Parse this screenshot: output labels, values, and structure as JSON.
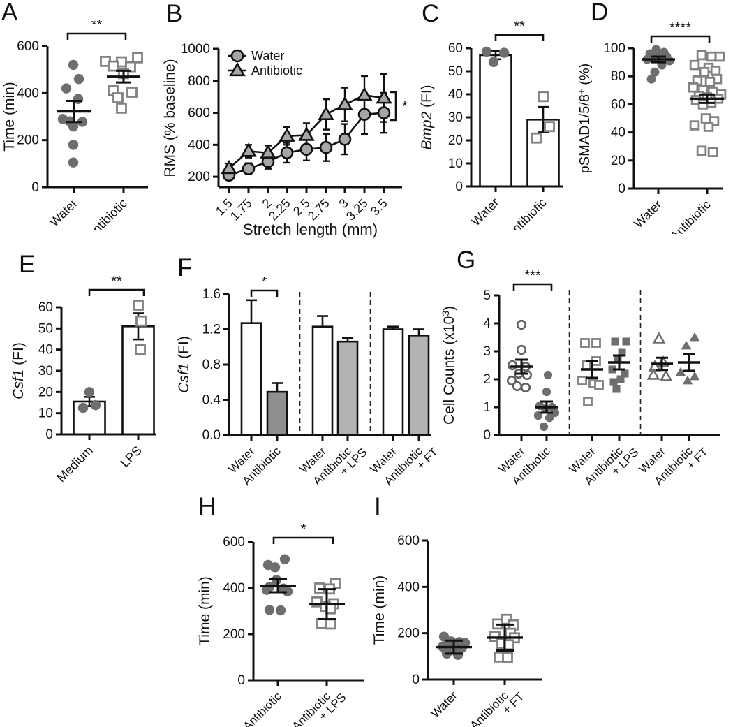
{
  "chart_data": {
    "style": {
      "axis_color": "#111111",
      "marker_gray": "#6e6e6e",
      "open_square_stroke": "#828282",
      "open_circle_stroke": "#5f5f5f",
      "line_marker_fill": "#a6a6a6",
      "bar_white": "#ffffff",
      "bar_dark": "#8f8f8f",
      "bar_light": "#b3b3b3",
      "background": "#ffffff"
    },
    "panel_order": [
      "A",
      "B",
      "C",
      "D",
      "E",
      "F",
      "G",
      "H",
      "I"
    ],
    "panels": {
      "A": {
        "letter": "A",
        "type": "scatter",
        "ylabel": [
          {
            "t": "Time (min)"
          }
        ],
        "ylim": [
          0,
          600
        ],
        "yticks": [
          0,
          200,
          400,
          600
        ],
        "ytick_labels": [
          "0",
          "200",
          "400",
          "600"
        ],
        "groups": [
          {
            "label_lines": [
              "Water"
            ],
            "marker": "circle-filled",
            "values": [
              520,
              460,
              420,
              375,
              290,
              280,
              278,
              258,
              180,
              105
            ],
            "dx": [
              -1,
              7,
              -11,
              6,
              -16,
              -6,
              12,
              -1,
              -1,
              -1
            ],
            "mean": 322,
            "err": 45
          },
          {
            "label_lines": [
              "Antibiotic"
            ],
            "marker": "square-open",
            "values": [
              550,
              535,
              533,
              515,
              512,
              483,
              410,
              404,
              380,
              336
            ],
            "dx": [
              20,
              -26,
              -3,
              -15,
              10,
              0,
              -15,
              12,
              -8,
              -3
            ],
            "mean": 470,
            "err": 25
          }
        ],
        "sig": {
          "label": "**"
        }
      },
      "B": {
        "letter": "B",
        "type": "line",
        "ylabel": [
          {
            "t": "RMS (% baseline)"
          }
        ],
        "xlabel": "Stretch length (mm)",
        "x_categories": [
          "1.5",
          "1.75",
          "2",
          "2.25",
          "2.5",
          "2.75",
          "3",
          "3.25",
          "3.5"
        ],
        "ylim": [
          135,
          1000
        ],
        "yticks": [
          200,
          400,
          600,
          800,
          1000
        ],
        "ytick_labels": [
          "200",
          "400",
          "600",
          "800",
          "1000"
        ],
        "series": [
          {
            "name": "Water",
            "marker": "circle-line",
            "values": [
              210,
              250,
              295,
              350,
              372,
              383,
              435,
              590,
              600
            ],
            "errors": [
              28,
              35,
              45,
              62,
              70,
              85,
              95,
              122,
              125
            ]
          },
          {
            "name": "Antibiotic",
            "marker": "triangle-line",
            "values": [
              253,
              360,
              350,
              455,
              460,
              590,
              652,
              710,
              693
            ],
            "errors": [
              30,
              40,
              45,
              55,
              75,
              95,
              105,
              120,
              150
            ]
          }
        ],
        "legend": {
          "items": [
            "Water",
            "Antibiotic"
          ]
        },
        "sig": {
          "label": "*"
        }
      },
      "C": {
        "letter": "C",
        "type": "bar",
        "ylabel": [
          {
            "t": "Bmp2",
            "italic": true
          },
          {
            "t": " (FI)"
          }
        ],
        "ylim": [
          0,
          60
        ],
        "yticks": [
          0,
          10,
          20,
          30,
          40,
          50,
          60
        ],
        "ytick_labels": [
          "0",
          "10",
          "20",
          "30",
          "40",
          "50",
          "60"
        ],
        "err_mode": "both",
        "groups": [
          {
            "label_lines": [
              "Water"
            ],
            "value": 57,
            "err": 1.8,
            "fill": "white",
            "points": {
              "marker": "circle-filled",
              "values": [
                58.5,
                58,
                54
              ],
              "dx": [
                -13,
                12,
                -3
              ]
            }
          },
          {
            "label_lines": [
              "Antibiotic"
            ],
            "value": 29,
            "err": 5.5,
            "fill": "white",
            "points": {
              "marker": "square-open",
              "values": [
                39,
                26,
                21
              ],
              "dx": [
                0,
                9,
                -10
              ]
            }
          }
        ],
        "sig": {
          "label": "**"
        }
      },
      "D": {
        "letter": "D",
        "type": "scatter",
        "ylabel": [
          {
            "t": "pSMAD1/5/8"
          },
          {
            "t": "+",
            "sup": true
          },
          {
            "t": " (%)"
          }
        ],
        "ylim": [
          0,
          100
        ],
        "yticks": [
          0,
          20,
          40,
          60,
          80,
          100
        ],
        "ytick_labels": [
          "0",
          "20",
          "40",
          "60",
          "80",
          "100"
        ],
        "groups": [
          {
            "label_lines": [
              "Water"
            ],
            "marker": "circle-filled",
            "values": [
              99,
              97,
              96,
              95,
              94,
              93,
              92,
              91,
              88,
              83,
              78
            ],
            "dx": [
              -3,
              8,
              -12,
              2,
              12,
              -8,
              -16,
              16,
              5,
              -5,
              -10
            ],
            "mean": 92,
            "err": 2
          },
          {
            "label_lines": [
              "Antibiotic"
            ],
            "marker": "square-open",
            "values": [
              95,
              94,
              94,
              88,
              86,
              84,
              83,
              78,
              77,
              76,
              72,
              70,
              69,
              67,
              66,
              65,
              64,
              63,
              61,
              60,
              50,
              48,
              45,
              44,
              27,
              26
            ],
            "dx": [
              -8,
              6,
              18,
              -18,
              2,
              12,
              -4,
              14,
              -14,
              4,
              -20,
              -6,
              8,
              20,
              -12,
              0,
              16,
              -16,
              6,
              -6,
              -2,
              10,
              -18,
              2,
              -8,
              8
            ],
            "mean": 64,
            "err": 3
          }
        ],
        "sig": {
          "label": "****"
        }
      },
      "E": {
        "letter": "E",
        "type": "bar",
        "ylabel": [
          {
            "t": "Csf1",
            "italic": true
          },
          {
            "t": " (FI)"
          }
        ],
        "ylim": [
          0,
          60
        ],
        "yticks": [
          0,
          10,
          20,
          30,
          40,
          50,
          60
        ],
        "ytick_labels": [
          "0",
          "10",
          "20",
          "30",
          "40",
          "50",
          "60"
        ],
        "err_mode": "both",
        "groups": [
          {
            "label_lines": [
              "Medium"
            ],
            "value": 15.5,
            "err": 2.2,
            "fill": "white",
            "points": {
              "marker": "circle-filled",
              "values": [
                20,
                13.8,
                12.5
              ],
              "dx": [
                0,
                9,
                -9
              ]
            }
          },
          {
            "label_lines": [
              "LPS"
            ],
            "value": 51,
            "err": 6.2,
            "fill": "white",
            "points": {
              "marker": "square-open",
              "values": [
                61,
                53.5,
                40
              ],
              "dx": [
                0,
                4,
                3
              ]
            }
          }
        ],
        "sig": {
          "label": "**"
        }
      },
      "F": {
        "letter": "F",
        "type": "bar",
        "ylabel": [
          {
            "t": "Csf1",
            "italic": true
          },
          {
            "t": " (FI)"
          }
        ],
        "ylim": [
          0,
          1.6
        ],
        "yticks": [
          0,
          0.4,
          0.8,
          1.2,
          1.6
        ],
        "ytick_labels": [
          "0.0",
          "0.4",
          "0.8",
          "1.2",
          "1.6"
        ],
        "err_mode": "up",
        "dividers_after": [
          1,
          3
        ],
        "groups": [
          {
            "label_lines": [
              "Water"
            ],
            "value": 1.27,
            "err": 0.26,
            "fill": "white"
          },
          {
            "label_lines": [
              "Antibiotic"
            ],
            "value": 0.49,
            "err": 0.1,
            "fill": "dark"
          },
          {
            "label_lines": [
              "Water"
            ],
            "value": 1.23,
            "err": 0.12,
            "fill": "white"
          },
          {
            "label_lines": [
              "Antibiotic",
              "+ LPS"
            ],
            "value": 1.06,
            "err": 0.04,
            "fill": "light"
          },
          {
            "label_lines": [
              "Water"
            ],
            "value": 1.2,
            "err": 0.03,
            "fill": "white"
          },
          {
            "label_lines": [
              "Antibiotic",
              "+ FT"
            ],
            "value": 1.13,
            "err": 0.07,
            "fill": "light"
          }
        ],
        "sig": {
          "label": "*"
        }
      },
      "G": {
        "letter": "G",
        "type": "scatter",
        "ylabel": [
          {
            "t": "Cell Counts (x10"
          },
          {
            "t": "3",
            "sup": true
          },
          {
            "t": ")"
          }
        ],
        "ylim": [
          0,
          5
        ],
        "yticks": [
          0,
          1,
          2,
          3,
          4,
          5
        ],
        "ytick_labels": [
          "0",
          "1",
          "2",
          "3",
          "4",
          "5"
        ],
        "dividers_after": [
          1,
          3
        ],
        "groups": [
          {
            "label_lines": [
              "Water"
            ],
            "marker": "circle-open",
            "values": [
              3.95,
              3.05,
              2.5,
              2.45,
              2.2,
              2.15,
              1.95,
              1.75,
              1.7
            ],
            "dx": [
              0,
              0,
              -13,
              6,
              -4,
              8,
              -14,
              -6,
              6
            ],
            "mean": 2.45,
            "err": 0.25
          },
          {
            "label_lines": [
              "Antibiotic"
            ],
            "marker": "circle-filled",
            "values": [
              2.15,
              1.55,
              1.05,
              1.0,
              0.95,
              0.8,
              0.7,
              0.62,
              0.3
            ],
            "dx": [
              2,
              0,
              -10,
              8,
              -2,
              12,
              -12,
              4,
              -4
            ],
            "mean": 1.0,
            "err": 0.2
          },
          {
            "label_lines": [
              "Water"
            ],
            "marker": "square-open",
            "values": [
              3.3,
              3.3,
              2.65,
              2.5,
              1.95,
              1.85,
              1.8,
              1.2
            ],
            "dx": [
              -10,
              6,
              6,
              -8,
              -14,
              2,
              10,
              -6
            ],
            "mean": 2.35,
            "err": 0.3
          },
          {
            "label_lines": [
              "Antibiotic",
              "+ LPS"
            ],
            "marker": "square-filled",
            "values": [
              3.35,
              3.35,
              2.95,
              2.7,
              2.35,
              2.2,
              2.0,
              1.9,
              1.65
            ],
            "dx": [
              -6,
              10,
              4,
              -2,
              -10,
              8,
              2,
              -8,
              -4
            ],
            "mean": 2.6,
            "err": 0.25
          },
          {
            "label_lines": [
              "Water"
            ],
            "marker": "triangle-open",
            "values": [
              3.45,
              2.6,
              2.45,
              2.15,
              2.1
            ],
            "dx": [
              -4,
              2,
              -10,
              -12,
              6
            ],
            "mean": 2.55,
            "err": 0.22
          },
          {
            "label_lines": [
              "Antibiotic",
              "+ FT"
            ],
            "marker": "triangle-filled",
            "values": [
              3.5,
              3.2,
              2.25,
              2.1,
              1.95
            ],
            "dx": [
              8,
              -4,
              -12,
              8,
              -2
            ],
            "mean": 2.6,
            "err": 0.3
          }
        ],
        "sig": {
          "label": "***"
        }
      },
      "H": {
        "letter": "H",
        "type": "scatter",
        "ylabel": [
          {
            "t": "Time (min)"
          }
        ],
        "ylim": [
          0,
          600
        ],
        "yticks": [
          0,
          200,
          400,
          600
        ],
        "ytick_labels": [
          "0",
          "200",
          "400",
          "600"
        ],
        "groups": [
          {
            "label_lines": [
              "Antibiotic"
            ],
            "marker": "circle-filled",
            "values": [
              525,
              500,
              490,
              435,
              405,
              398,
              392,
              385,
              305,
              303
            ],
            "dx": [
              10,
              -14,
              -4,
              -2,
              -12,
              8,
              -16,
              14,
              -12,
              4
            ],
            "mean": 410,
            "err": 28
          },
          {
            "label_lines": [
              "Antibiotic",
              "+ LPS"
            ],
            "marker": "square-open",
            "values": [
              420,
              400,
              396,
              340,
              332,
              318,
              310,
              246,
              244
            ],
            "dx": [
              12,
              -10,
              4,
              -14,
              10,
              -2,
              6,
              -8,
              6
            ],
            "mean": 330,
            "err": 65
          }
        ],
        "sig": {
          "label": "*"
        }
      },
      "I": {
        "letter": "I",
        "type": "scatter",
        "ylabel": [
          {
            "t": "Time (min)"
          }
        ],
        "ylim": [
          0,
          600
        ],
        "yticks": [
          0,
          200,
          400,
          600
        ],
        "ytick_labels": [
          "0",
          "200",
          "400",
          "600"
        ],
        "groups": [
          {
            "label_lines": [
              "Water"
            ],
            "marker": "circle-filled",
            "values": [
              185,
              165,
              162,
              158,
              152,
              145,
              142,
              138,
              132,
              112,
              106
            ],
            "dx": [
              -14,
              -4,
              8,
              16,
              -8,
              4,
              -16,
              12,
              0,
              -10,
              6
            ],
            "mean": 140,
            "err": 28
          },
          {
            "label_lines": [
              "Antibiotic",
              "+ FT"
            ],
            "marker": "square-open",
            "values": [
              260,
              240,
              236,
              200,
              186,
              180,
              156,
              150,
              97,
              94
            ],
            "dx": [
              2,
              -10,
              12,
              8,
              -14,
              14,
              -4,
              6,
              -8,
              4
            ],
            "mean": 181,
            "err": 56
          }
        ]
      }
    }
  }
}
